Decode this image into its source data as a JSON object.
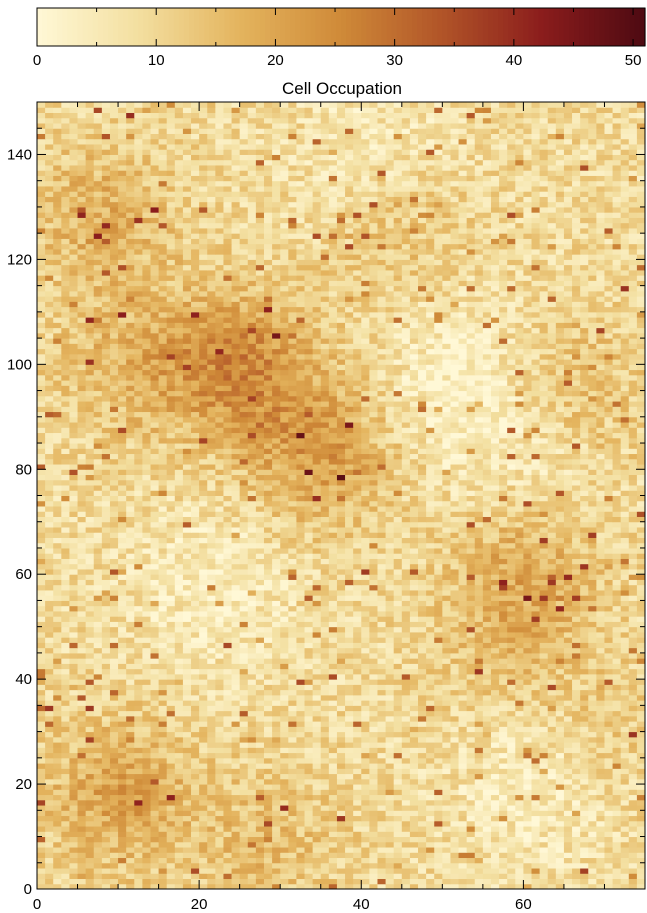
{
  "chart_data": {
    "type": "heatmap",
    "title": "Cell Occupation",
    "xlabel": "",
    "ylabel": "",
    "x_range": [
      0,
      75
    ],
    "y_range": [
      0,
      150
    ],
    "x_ticks": [
      0,
      20,
      40,
      60
    ],
    "y_ticks": [
      0,
      20,
      40,
      60,
      80,
      100,
      120,
      140
    ],
    "grid_shape": {
      "cols": 75,
      "rows": 150
    },
    "colorbar": {
      "min": 0,
      "max": 51,
      "ticks": [
        0,
        10,
        20,
        30,
        40,
        50
      ],
      "orientation": "horizontal",
      "placement": "top",
      "colormap": [
        "#fff8d6",
        "#f3dfa0",
        "#e4b45e",
        "#cf8a38",
        "#b15428",
        "#8a1c1c",
        "#4d0a12"
      ]
    },
    "hotspots": [
      {
        "x": 25,
        "y": 100,
        "value": 35
      },
      {
        "x": 35,
        "y": 83,
        "value": 30
      },
      {
        "x": 10,
        "y": 18,
        "value": 28
      },
      {
        "x": 60,
        "y": 62,
        "value": 27
      },
      {
        "x": 8,
        "y": 128,
        "value": 24
      },
      {
        "x": 12,
        "y": 100,
        "value": 22
      },
      {
        "x": 28,
        "y": 8,
        "value": 20
      },
      {
        "x": 58,
        "y": 44,
        "value": 18
      },
      {
        "x": 66,
        "y": 96,
        "value": 20
      },
      {
        "x": 45,
        "y": 125,
        "value": 18
      },
      {
        "x": 70,
        "y": 30,
        "value": 16
      }
    ],
    "low_regions": [
      {
        "x": 52,
        "y": 98,
        "value": 3
      },
      {
        "x": 62,
        "y": 22,
        "value": 3
      },
      {
        "x": 22,
        "y": 58,
        "value": 4
      },
      {
        "x": 60,
        "y": 80,
        "value": 4
      },
      {
        "x": 42,
        "y": 140,
        "value": 5
      }
    ],
    "background_level": 9,
    "noise_level": 4
  }
}
